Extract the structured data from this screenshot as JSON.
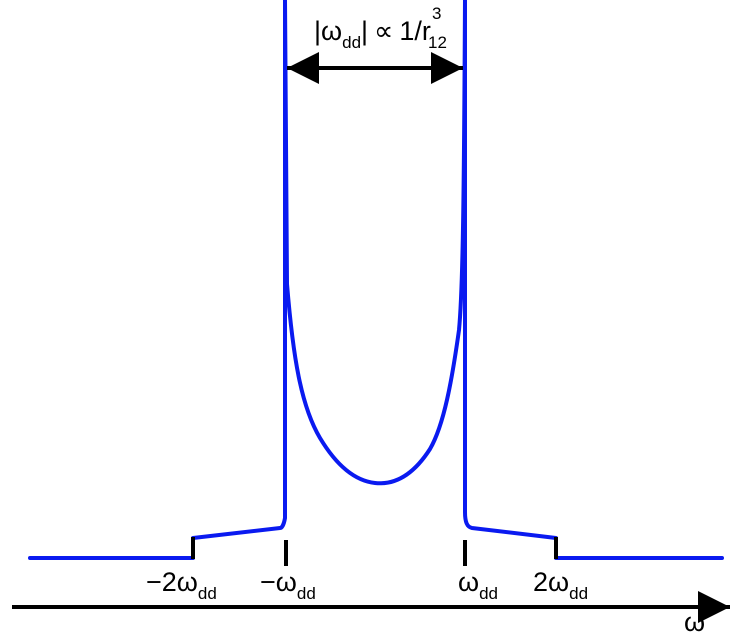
{
  "colors": {
    "curve": "#0a1af0",
    "ink": "#000000",
    "background": "#ffffff"
  },
  "top_annotation": {
    "open_bar": "|",
    "symbol": "ω",
    "subscript": "dd",
    "close_bar": "|",
    "relation": "∝",
    "numerator": "1/r",
    "exponent": "3",
    "index": "12"
  },
  "tick_labels": {
    "minus_two": {
      "main": "−2ω",
      "sub": "dd"
    },
    "minus_one": {
      "main": "−ω",
      "sub": "dd"
    },
    "plus_one": {
      "main": "ω",
      "sub": "dd"
    },
    "plus_two": {
      "main": "2ω",
      "sub": "dd"
    }
  },
  "axis_label": "ω"
}
